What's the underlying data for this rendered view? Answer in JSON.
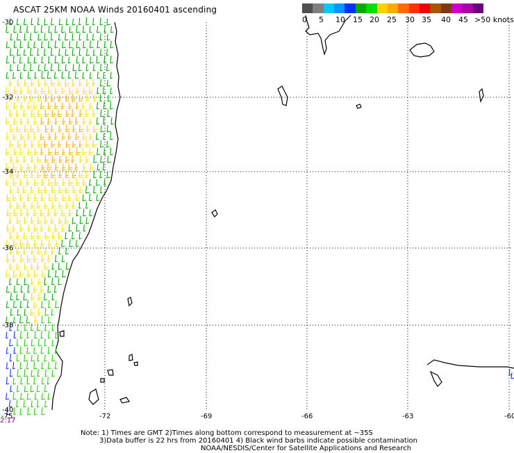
{
  "title": "ASCAT 25KM NOAA Winds 20160401  ascending",
  "legend": {
    "colors": [
      "#505050",
      "#808080",
      "#00c8ff",
      "#0096ff",
      "#0032ff",
      "#00aa00",
      "#00dd00",
      "#ffd000",
      "#ffaa00",
      "#ff6a00",
      "#ff3000",
      "#ee0000",
      "#aa5500",
      "#7a3a10",
      "#cc00cc",
      "#aa00aa",
      "#6a007a"
    ],
    "ticks": [
      "0",
      "5",
      "10",
      "15",
      "20",
      "25",
      "30",
      "35",
      "40",
      "45",
      ">50 knots"
    ]
  },
  "axes": {
    "lat_labels": [
      "-30",
      "-32",
      "-34",
      "-36",
      "-38",
      "-40"
    ],
    "lon_labels": [
      "-75",
      "-72",
      "-69",
      "-66",
      "-63",
      "-60"
    ]
  },
  "time_label": "2:17",
  "notes": [
    "Note: 1) Times are GMT 2)Times along bottom correspond to measurement at ~35S",
    "3)Data buffer is 22 hrs from 20160401 4) Black wind barbs indicate possible contamination",
    "NOAA/NESDIS/Center for Satellite Applications and Research"
  ],
  "barb_colors": {
    "green": "#00aa00",
    "bright_green": "#22cc00",
    "yellow": "#ffe000",
    "orange": "#ffb000",
    "blue": "#1030ff"
  }
}
